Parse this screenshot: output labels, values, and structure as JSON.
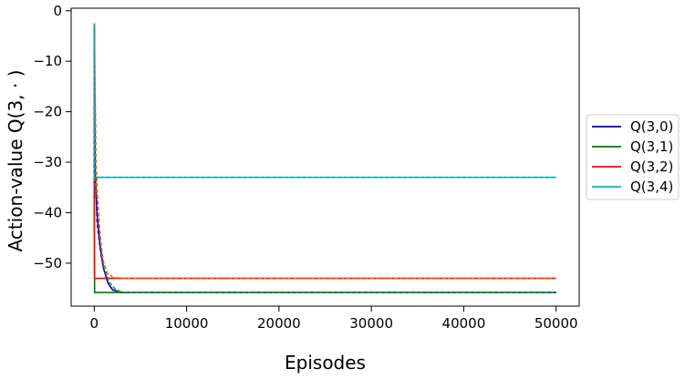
{
  "chart_data": {
    "type": "line",
    "title": "",
    "xlabel": "Episodes",
    "ylabel": "Action-value Q(3, · )",
    "xlim": [
      -2500,
      52500
    ],
    "ylim": [
      -58.5,
      0.5
    ],
    "xticks": [
      0,
      10000,
      20000,
      30000,
      40000,
      50000
    ],
    "xtick_labels": [
      "0",
      "10000",
      "20000",
      "30000",
      "40000",
      "50000"
    ],
    "yticks": [
      0,
      -10,
      -20,
      -30,
      -40,
      -50
    ],
    "ytick_labels": [
      "0",
      "−10",
      "−20",
      "−30",
      "−40",
      "−50"
    ],
    "grid": false,
    "legend_position": "outside-right",
    "series": [
      {
        "name": "Q(3,0)",
        "color": "#0000cc",
        "values": [
          [
            0,
            -33
          ],
          [
            10,
            -3
          ],
          [
            100,
            -32
          ],
          [
            300,
            -40
          ],
          [
            600,
            -46
          ],
          [
            1000,
            -51
          ],
          [
            1500,
            -54
          ],
          [
            2000,
            -55.3
          ],
          [
            3000,
            -55.8
          ],
          [
            50000,
            -55.8
          ]
        ]
      },
      {
        "name": "Q(3,1)",
        "color": "#007700",
        "values": [
          [
            0,
            -33
          ],
          [
            40,
            -55.8
          ],
          [
            50000,
            -55.8
          ]
        ]
      },
      {
        "name": "Q(3,2)",
        "color": "#ff0000",
        "values": [
          [
            0,
            -33
          ],
          [
            30,
            -53
          ],
          [
            50000,
            -53
          ]
        ]
      },
      {
        "name": "Q(3,4)",
        "color": "#00bbbb",
        "values": [
          [
            0,
            -33
          ],
          [
            20,
            -33
          ],
          [
            50000,
            -33
          ]
        ]
      }
    ],
    "dashed_estimates": [
      {
        "color": "#1111aa",
        "values": [
          [
            0,
            -33
          ],
          [
            10,
            -2.5
          ],
          [
            100,
            -30
          ],
          [
            300,
            -42
          ],
          [
            700,
            -48
          ],
          [
            1000,
            -51
          ],
          [
            1500,
            -53.5
          ],
          [
            2200,
            -55
          ],
          [
            3000,
            -55.8
          ],
          [
            50000,
            -55.8
          ]
        ]
      },
      {
        "color": "#33aa33",
        "values": [
          [
            0,
            -33
          ],
          [
            150,
            -34
          ],
          [
            400,
            -38
          ],
          [
            700,
            -46
          ],
          [
            1100,
            -51
          ],
          [
            1700,
            -54
          ],
          [
            2500,
            -55.5
          ],
          [
            3500,
            -55.8
          ],
          [
            50000,
            -55.8
          ]
        ]
      },
      {
        "color": "#ff6600",
        "values": [
          [
            0,
            -33
          ],
          [
            10,
            -2.5
          ],
          [
            200,
            -30
          ],
          [
            500,
            -42
          ],
          [
            900,
            -49
          ],
          [
            1400,
            -52
          ],
          [
            2000,
            -52.8
          ],
          [
            3000,
            -53
          ],
          [
            50000,
            -53
          ]
        ]
      },
      {
        "color": "#00aaaa",
        "values": [
          [
            0,
            -33
          ],
          [
            10,
            -2.5
          ],
          [
            60,
            -33
          ],
          [
            50000,
            -33
          ]
        ]
      }
    ]
  }
}
